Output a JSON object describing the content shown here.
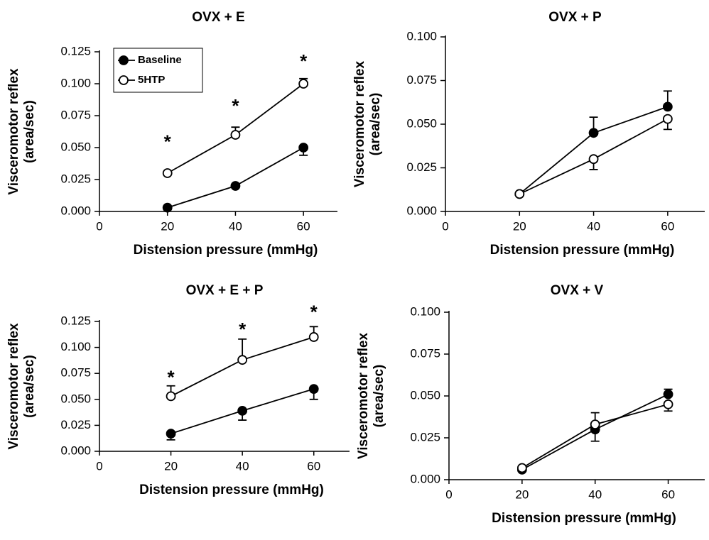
{
  "chart_data": [
    {
      "type": "line",
      "title": "OVX + E",
      "xlabel": "Distension pressure (mmHg)",
      "ylabel": [
        "Visceromotor reflex",
        "(area/sec)"
      ],
      "x": [
        20,
        40,
        60
      ],
      "xlim": [
        0,
        70
      ],
      "xticks": [
        0,
        20,
        40,
        60
      ],
      "ylim": [
        0,
        0.125
      ],
      "yticks": [
        {
          "value": 0,
          "label": "0.000"
        },
        0.025,
        {
          "value": 0.05,
          "label": "0.050"
        },
        0.075,
        {
          "value": 0.1,
          "label": "0.100"
        },
        0.125
      ],
      "legend": "upper left",
      "series": [
        {
          "name": "Baseline",
          "color": "#000000",
          "marker": "filled",
          "values": [
            0.003,
            0.02,
            0.05
          ],
          "errors": [
            null,
            null,
            0.006
          ],
          "error_side": [
            "down",
            "down",
            "down"
          ]
        },
        {
          "name": "5HTP",
          "color": "#000000",
          "marker": "open",
          "values": [
            0.03,
            0.06,
            0.1
          ],
          "errors": [
            null,
            0.006,
            0.004
          ],
          "error_side": [
            "up",
            "up",
            "up"
          ]
        }
      ],
      "annotations": [
        {
          "text": "*",
          "x": 20,
          "y": 0.057
        },
        {
          "text": "*",
          "x": 40,
          "y": 0.085
        },
        {
          "text": "*",
          "x": 60,
          "y": 0.12
        }
      ]
    },
    {
      "type": "line",
      "title": "OVX + P",
      "xlabel": "Distension pressure (mmHg)",
      "ylabel": [
        "Visceromotor reflex",
        "(area/sec)"
      ],
      "x": [
        20,
        40,
        60
      ],
      "xlim": [
        0,
        70
      ],
      "xticks": [
        0,
        20,
        40,
        60
      ],
      "ylim": [
        0,
        0.1
      ],
      "yticks": [
        {
          "value": 0,
          "label": "0.000"
        },
        0.025,
        {
          "value": 0.05,
          "label": "0.050"
        },
        0.075,
        {
          "value": 0.1,
          "label": "0.100"
        }
      ],
      "series": [
        {
          "color": "#000000",
          "marker": "filled",
          "values": [
            0.01,
            0.045,
            0.06
          ],
          "errors": [
            null,
            0.009,
            0.009
          ],
          "error_side": [
            "up",
            "up",
            "up"
          ]
        },
        {
          "color": "#000000",
          "marker": "open",
          "values": [
            0.01,
            0.03,
            0.053
          ],
          "errors": [
            null,
            0.006,
            0.006
          ],
          "error_side": [
            "down",
            "down",
            "down"
          ]
        }
      ]
    },
    {
      "type": "line",
      "title": "OVX + E + P",
      "xlabel": "Distension pressure (mmHg)",
      "ylabel": [
        "Visceromotor reflex",
        "(area/sec)"
      ],
      "x": [
        20,
        40,
        60
      ],
      "xlim": [
        0,
        70
      ],
      "xticks": [
        0,
        20,
        40,
        60
      ],
      "ylim": [
        0,
        0.125
      ],
      "yticks": [
        {
          "value": 0,
          "label": "0.000"
        },
        0.025,
        {
          "value": 0.05,
          "label": "0.050"
        },
        0.075,
        {
          "value": 0.1,
          "label": "0.100"
        },
        0.125
      ],
      "series": [
        {
          "color": "#000000",
          "marker": "filled",
          "values": [
            0.017,
            0.039,
            0.06
          ],
          "errors": [
            0.006,
            0.009,
            0.01
          ],
          "error_side": [
            "down",
            "down",
            "down"
          ]
        },
        {
          "color": "#000000",
          "marker": "open",
          "values": [
            0.053,
            0.088,
            0.11
          ],
          "errors": [
            0.01,
            0.02,
            0.01
          ],
          "error_side": [
            "up",
            "up",
            "up"
          ]
        }
      ],
      "annotations": [
        {
          "text": "*",
          "x": 20,
          "y": 0.074
        },
        {
          "text": "*",
          "x": 40,
          "y": 0.12
        },
        {
          "text": "*",
          "x": 60,
          "y": 0.137
        }
      ]
    },
    {
      "type": "line",
      "title": "OVX + V",
      "xlabel": "Distension pressure (mmHg)",
      "ylabel": [
        "Visceromotor reflex",
        "(area/sec)"
      ],
      "x": [
        20,
        40,
        60
      ],
      "xlim": [
        0,
        70
      ],
      "xticks": [
        0,
        20,
        40,
        60
      ],
      "ylim": [
        0,
        0.1
      ],
      "yticks": [
        {
          "value": 0,
          "label": "0.000"
        },
        0.025,
        {
          "value": 0.05,
          "label": "0.050"
        },
        0.075,
        {
          "value": 0.1,
          "label": "0.100"
        }
      ],
      "series": [
        {
          "color": "#000000",
          "marker": "filled",
          "values": [
            0.006,
            0.03,
            0.051
          ],
          "errors": [
            null,
            0.007,
            0.003
          ],
          "error_side": [
            "down",
            "down",
            "up"
          ]
        },
        {
          "color": "#000000",
          "marker": "open",
          "values": [
            0.007,
            0.033,
            0.045
          ],
          "errors": [
            null,
            0.007,
            0.004
          ],
          "error_side": [
            "up",
            "up",
            "down"
          ]
        }
      ]
    }
  ]
}
